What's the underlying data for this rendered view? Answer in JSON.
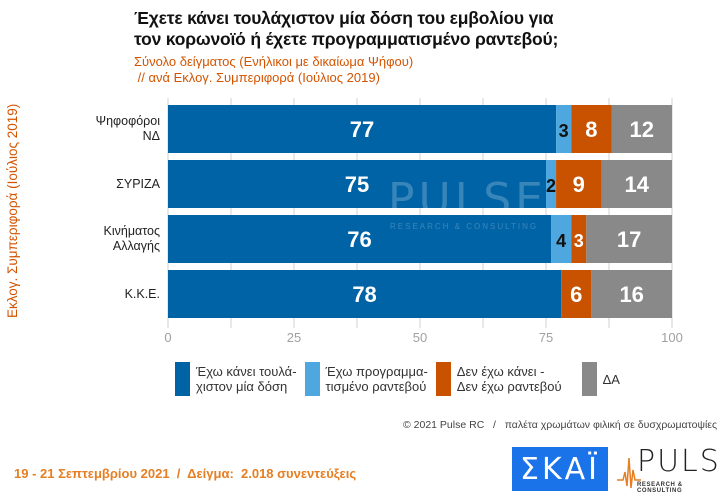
{
  "header": {
    "title_line1": "Έχετε κάνει τουλάχιστον μία δόση του εμβολίου για",
    "title_line2": "τον κορωνοϊό ή έχετε προγραμματισμένο ραντεβού;",
    "subtitle_line1": "Σύνολο δείγματος (Ενήλικοι με δικαίωμα Ψήφου)",
    "subtitle_line2": " // ανά Εκλογ. Συμπεριφορά (Ιούλιος 2019)"
  },
  "colors": {
    "done": "#0063a6",
    "scheduled": "#4ea7de",
    "not": "#c85200",
    "na": "#898989",
    "grid": "#d0d0d0",
    "tick_text": "#a0a0a0"
  },
  "chart_data": {
    "type": "bar",
    "orientation": "horizontal",
    "stacked": true,
    "title": "Έχετε κάνει τουλάχιστον μία δόση του εμβολίου για τον κορωνοϊό ή έχετε προγραμματισμένο ραντεβού;",
    "ylabel": "Εκλογ. Συμπεριφορά (Ιούλιος 2019)",
    "xlabel": "",
    "xlim": [
      0,
      100
    ],
    "xticks": [
      0,
      25,
      50,
      75,
      100
    ],
    "grid": true,
    "legend_position": "bottom",
    "categories": [
      [
        "Ψηφοφόροι",
        "ΝΔ"
      ],
      [
        "ΣΥΡΙΖΑ"
      ],
      [
        "Κινήματος",
        "Αλλαγής"
      ],
      [
        "Κ.Κ.Ε."
      ]
    ],
    "series": [
      {
        "name": "Έχω κάνει τουλάχιστον μία δόση",
        "legend_lines": [
          "Έχω κάνει τουλά-",
          "χιστον μία δόση"
        ],
        "color_key": "done",
        "label_color": "#ffffff",
        "values": [
          77,
          75,
          76,
          78
        ]
      },
      {
        "name": "Έχω προγραμματισμένο ραντεβού",
        "legend_lines": [
          "Έχω προγραμμα-",
          "τισμένο ραντεβού"
        ],
        "color_key": "scheduled",
        "label_color": "#111111",
        "values": [
          3,
          2,
          4,
          0
        ]
      },
      {
        "name": "Δεν έχω κάνει - Δεν έχω ραντεβού",
        "legend_lines": [
          "Δεν έχω κάνει -",
          "Δεν έχω ραντεβού"
        ],
        "color_key": "not",
        "label_color": "#ffffff",
        "values": [
          8,
          9,
          3,
          6
        ]
      },
      {
        "name": "ΔΑ",
        "legend_lines": [
          "ΔΑ"
        ],
        "color_key": "na",
        "label_color": "#ffffff",
        "values": [
          12,
          14,
          17,
          16
        ]
      }
    ]
  },
  "watermark": {
    "main": "PULSE",
    "sub": "RESEARCH & CONSULTING"
  },
  "footer": {
    "credit": "© 2021 Pulse RC   /   παλέτα χρωμάτων φιλική σε δυσχρωματοψίες",
    "date_sample": "19 - 21 Σεπτεμβρίου 2021  /  Δείγμα:  2.018 συνεντεύξεις",
    "logo_skai": "ΣΚΑΪ",
    "logo_pulse": "PULSE",
    "logo_pulse_sub": "RESEARCH & CONSULTING"
  }
}
